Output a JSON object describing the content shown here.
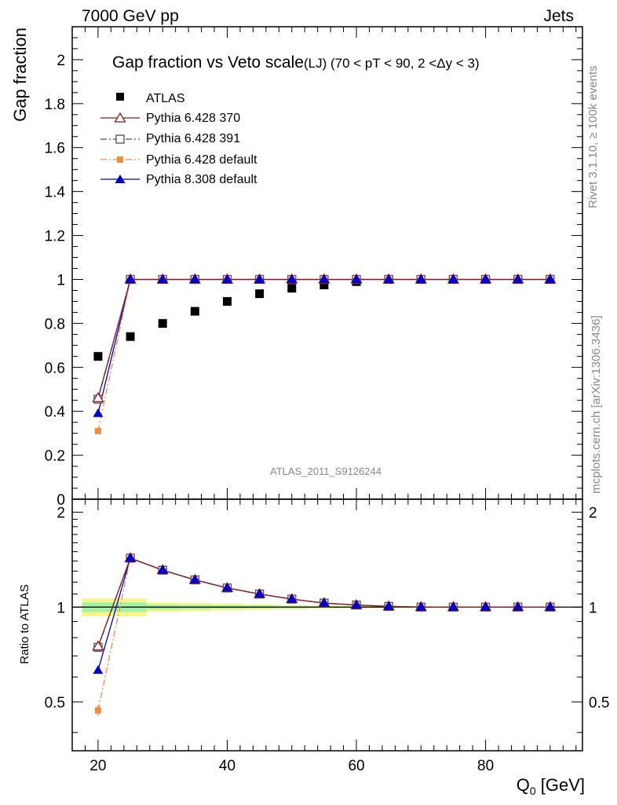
{
  "header": {
    "left": "7000 GeV pp",
    "right": "Jets"
  },
  "side_texts": {
    "rivet": "Rivet 3.1.10, ≥ 100k events",
    "mcplots": "mcplots.cern.ch [arXiv:1306.3436]"
  },
  "watermark": "ATLAS_2011_S9126244",
  "colors": {
    "atlas": "#000000",
    "p370": "#7f1f1f",
    "p391": "#6b4250",
    "p6def": "#f28c3c",
    "p8def": "#0000cc",
    "band_outer": "#f5f58a",
    "band_inner": "#a4f0a4"
  },
  "chart_data": [
    {
      "type": "line",
      "title": "Gap fraction vs Veto scale",
      "subtitle": "(LJ) (70 < pT <  90, 2 <Δy < 3)",
      "xlabel": "",
      "ylabel": "Gap fraction",
      "xlim": [
        16,
        95
      ],
      "ylim": [
        0,
        2.15
      ],
      "yticks": [
        0,
        0.2,
        0.4,
        0.6,
        0.8,
        1,
        1.2,
        1.4,
        1.6,
        1.8,
        2
      ],
      "ytick_labels": [
        "0",
        "0.2",
        "0.4",
        "0.6",
        "0.8",
        "1",
        "1.2",
        "1.4",
        "1.6",
        "1.8",
        "2"
      ],
      "x": [
        20,
        25,
        30,
        35,
        40,
        45,
        50,
        55,
        60,
        65,
        70,
        75,
        80,
        85,
        90
      ],
      "legend": {
        "position": "top-left"
      },
      "series": [
        {
          "key": "atlas",
          "name": "ATLAS",
          "marker": "square",
          "values": [
            0.65,
            0.74,
            0.8,
            0.855,
            0.9,
            0.935,
            0.96,
            0.975,
            0.99,
            1.0,
            1.0,
            1.0,
            1.0,
            1.0,
            1.0
          ]
        },
        {
          "key": "p370",
          "name": "Pythia 6.428 370",
          "marker": "open-triangle",
          "line": "solid",
          "values": [
            0.46,
            1.0,
            1.0,
            1.0,
            1.0,
            1.0,
            1.0,
            1.0,
            1.0,
            1.0,
            1.0,
            1.0,
            1.0,
            1.0,
            1.0
          ]
        },
        {
          "key": "p391",
          "name": "Pythia 6.428 391",
          "marker": "open-square",
          "line": "dashdot",
          "values": [
            0.455,
            1.0,
            1.0,
            1.0,
            1.0,
            1.0,
            1.0,
            1.0,
            1.0,
            1.0,
            1.0,
            1.0,
            1.0,
            1.0,
            1.0
          ]
        },
        {
          "key": "p6def",
          "name": "Pythia 6.428 default",
          "marker": "filled-square",
          "line": "dashdot",
          "values": [
            0.31,
            1.0,
            1.0,
            1.0,
            1.0,
            1.0,
            1.0,
            1.0,
            1.0,
            1.0,
            1.0,
            1.0,
            1.0,
            1.0,
            1.0
          ]
        },
        {
          "key": "p8def",
          "name": "Pythia 8.308 default",
          "marker": "filled-triangle",
          "line": "solid",
          "values": [
            0.39,
            1.0,
            1.0,
            1.0,
            1.0,
            1.0,
            1.0,
            1.0,
            1.0,
            1.0,
            1.0,
            1.0,
            1.0,
            1.0,
            1.0
          ]
        }
      ]
    },
    {
      "type": "line",
      "title": "",
      "xlabel": "Q",
      "xlabel_sub": "0",
      "xlabel_unit": " [GeV]",
      "ylabel": "Ratio to ATLAS",
      "xlim": [
        16,
        95
      ],
      "ylim": [
        0.35,
        2.2
      ],
      "xticks": [
        20,
        40,
        60,
        80
      ],
      "xtick_labels": [
        "20",
        "40",
        "60",
        "80"
      ],
      "yticks": [
        0.5,
        1,
        2
      ],
      "ytick_labels": [
        "0.5",
        "1",
        "2"
      ],
      "x": [
        20,
        25,
        30,
        35,
        40,
        45,
        50,
        55,
        60,
        65,
        70,
        75,
        80,
        85,
        90
      ],
      "band": {
        "x_edges": [
          17.5,
          22.5,
          27.5,
          32.5,
          37.5,
          42.5,
          47.5,
          52.5,
          57.5,
          62.5,
          67.5,
          72.5,
          77.5,
          82.5,
          87.5,
          92.5
        ],
        "outer": [
          0.065,
          0.065,
          0.035,
          0.03,
          0.025,
          0.02,
          0.015,
          0.012,
          0.01,
          0.008,
          0.006,
          0.005,
          0.004,
          0.004,
          0.004
        ],
        "inner": [
          0.035,
          0.035,
          0.018,
          0.015,
          0.012,
          0.01,
          0.008,
          0.006,
          0.005,
          0.004,
          0.003,
          0.003,
          0.002,
          0.002,
          0.002
        ]
      },
      "series": [
        {
          "key": "p370",
          "name": "Pythia 6.428 370",
          "values": [
            0.75,
            1.43,
            1.31,
            1.22,
            1.15,
            1.1,
            1.06,
            1.03,
            1.015,
            1.005,
            1.0,
            1.0,
            1.0,
            1.0,
            1.0
          ]
        },
        {
          "key": "p391",
          "name": "Pythia 6.428 391",
          "values": [
            0.745,
            1.43,
            1.31,
            1.22,
            1.15,
            1.1,
            1.06,
            1.03,
            1.015,
            1.005,
            1.0,
            1.0,
            1.0,
            1.0,
            1.0
          ]
        },
        {
          "key": "p6def",
          "name": "Pythia 6.428 default",
          "values": [
            0.47,
            1.43,
            1.31,
            1.22,
            1.15,
            1.1,
            1.06,
            1.03,
            1.015,
            1.005,
            1.0,
            1.0,
            1.0,
            1.0,
            1.0
          ]
        },
        {
          "key": "p8def",
          "name": "Pythia 8.308 default",
          "values": [
            0.63,
            1.43,
            1.31,
            1.22,
            1.15,
            1.1,
            1.06,
            1.03,
            1.015,
            1.005,
            1.0,
            1.0,
            1.0,
            1.0,
            1.0
          ]
        }
      ]
    }
  ]
}
